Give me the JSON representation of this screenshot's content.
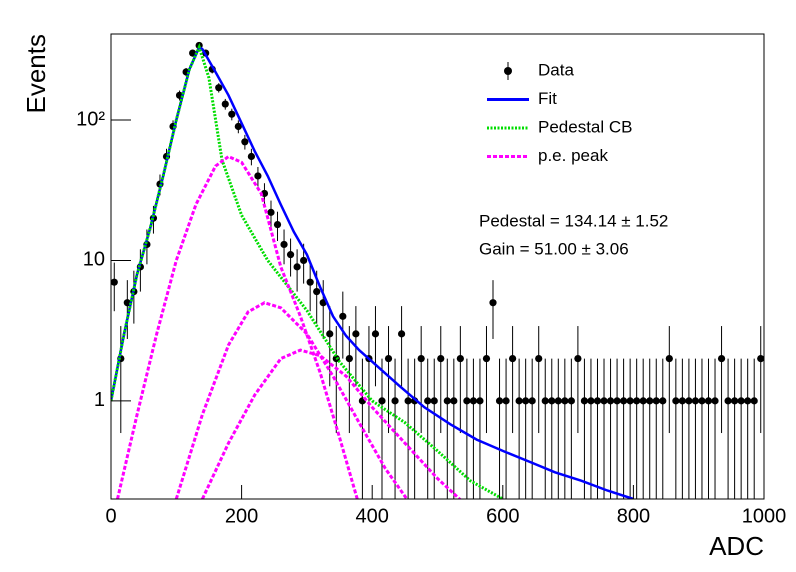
{
  "chart_data": {
    "type": "scatter",
    "x_label": "ADC",
    "y_label": "Events",
    "xlim": [
      0,
      1000
    ],
    "ylim": [
      0.2,
      410
    ],
    "log_y": true,
    "xticks": [
      0,
      200,
      400,
      600,
      800,
      1000
    ],
    "yticks": [
      1,
      10,
      {
        "value": 100,
        "label": "10²"
      }
    ],
    "legend": "top right",
    "annotations": [
      "Pedestal = 134.14 ± 1.52",
      "Gain = 51.00 ± 3.06"
    ],
    "series": [
      {
        "name": "Data",
        "color": "#000000",
        "style": "points",
        "x": [
          5,
          15,
          25,
          35,
          45,
          55,
          65,
          75,
          85,
          95,
          105,
          115,
          125,
          135,
          145,
          155,
          165,
          175,
          185,
          195,
          205,
          215,
          225,
          235,
          245,
          255,
          265,
          275,
          285,
          295,
          305,
          315,
          325,
          335,
          345,
          355,
          365,
          375,
          385,
          395,
          405,
          415,
          425,
          435,
          445,
          455,
          465,
          475,
          485,
          495,
          505,
          515,
          525,
          535,
          545,
          555,
          565,
          575,
          585,
          595,
          605,
          615,
          625,
          635,
          645,
          655,
          665,
          675,
          685,
          695,
          705,
          715,
          725,
          735,
          745,
          755,
          765,
          775,
          785,
          795,
          805,
          815,
          825,
          835,
          845,
          855,
          865,
          875,
          885,
          895,
          905,
          915,
          925,
          935,
          945,
          955,
          965,
          975,
          985,
          995
        ],
        "values": [
          7,
          2,
          5,
          6,
          9,
          13,
          20,
          35,
          55,
          90,
          150,
          220,
          300,
          340,
          300,
          230,
          170,
          130,
          110,
          90,
          70,
          55,
          40,
          30,
          22,
          18,
          13,
          11,
          9,
          10,
          7,
          6,
          5,
          3,
          2,
          4,
          2,
          3,
          1,
          2,
          3,
          1,
          2,
          1,
          3,
          1,
          1,
          2,
          1,
          1,
          2,
          1,
          1,
          2,
          1,
          1,
          1,
          2,
          5,
          1,
          1,
          2,
          1,
          1,
          1,
          2,
          1,
          1,
          1,
          1,
          1,
          2,
          1,
          1,
          1,
          1,
          1,
          1,
          1,
          1,
          1,
          1,
          1,
          1,
          1,
          2,
          1,
          1,
          1,
          1,
          1,
          1,
          1,
          2,
          1,
          1,
          1,
          1,
          1,
          2
        ],
        "errors": [
          2.65,
          1.41,
          2.24,
          2.45,
          3,
          3.61,
          4.47,
          5.92,
          7.42,
          9.49,
          12.25,
          14.83,
          17.32,
          18.44,
          17.32,
          15.17,
          13.04,
          11.4,
          10.49,
          9.49,
          8.37,
          7.42,
          6.32,
          5.48,
          4.69,
          4.24,
          3.61,
          3.32,
          3,
          3.16,
          2.65,
          2.45,
          2.24,
          1.73,
          1.41,
          2,
          1.41,
          1.73,
          1,
          1.41,
          1.73,
          1,
          1.41,
          1,
          1.73,
          1,
          1,
          1.41,
          1,
          1,
          1.41,
          1,
          1,
          1.41,
          1,
          1,
          1,
          1.41,
          2.24,
          1,
          1,
          1.41,
          1,
          1,
          1,
          1.41,
          1,
          1,
          1,
          1,
          1,
          1.41,
          1,
          1,
          1,
          1,
          1,
          1,
          1,
          1,
          1,
          1,
          1,
          1,
          1,
          1.41,
          1,
          1,
          1,
          1,
          1,
          1,
          1,
          1.41,
          1,
          1,
          1,
          1,
          1,
          1.41
        ]
      },
      {
        "name": "Fit",
        "color": "#0000ff",
        "style": "solid",
        "x": [
          0,
          20,
          40,
          60,
          80,
          100,
          120,
          135,
          140,
          160,
          180,
          200,
          220,
          240,
          260,
          280,
          300,
          320,
          340,
          360,
          380,
          400,
          440,
          480,
          520,
          560,
          600,
          640,
          680,
          720,
          760,
          800
        ],
        "values": [
          1,
          3,
          8,
          17,
          40,
          100,
          230,
          330,
          320,
          220,
          150,
          95,
          60,
          40,
          25,
          16,
          11,
          6.5,
          4,
          2.9,
          2.3,
          1.9,
          1.3,
          0.9,
          0.68,
          0.53,
          0.44,
          0.37,
          0.31,
          0.27,
          0.23,
          0.2
        ]
      },
      {
        "name": "Pedestal CB",
        "color": "#00dd00",
        "style": "dotted",
        "x": [
          0,
          20,
          40,
          60,
          80,
          100,
          120,
          135,
          150,
          170,
          200,
          240,
          300,
          350,
          400,
          450,
          500,
          550,
          600
        ],
        "values": [
          1,
          3,
          8,
          17,
          40,
          100,
          230,
          330,
          200,
          52,
          21,
          10,
          4.4,
          1.9,
          1,
          0.7,
          0.44,
          0.27,
          0.2
        ]
      },
      {
        "name": "p.e. peak",
        "color": "#ff00ff",
        "style": "dashed",
        "x": [
          10,
          40,
          70,
          100,
          130,
          160,
          180,
          200,
          230,
          260,
          290,
          320,
          350,
          380
        ],
        "values": [
          0.2,
          0.8,
          3,
          10,
          25,
          47,
          55,
          50,
          30,
          9,
          4,
          1.6,
          0.55,
          0.18
        ]
      },
      {
        "name": "p.e. peak",
        "color": "#ff00ff",
        "style": "dashed",
        "x": [
          100,
          140,
          180,
          210,
          235,
          260,
          300,
          340,
          380,
          420,
          460
        ],
        "values": [
          0.2,
          0.8,
          2.5,
          4.3,
          5,
          4.6,
          3,
          1.5,
          0.7,
          0.33,
          0.18
        ]
      },
      {
        "name": "p.e. peak",
        "color": "#ff00ff",
        "style": "dashed",
        "x": [
          140,
          180,
          220,
          260,
          290,
          320,
          360,
          400,
          450,
          500,
          550
        ],
        "values": [
          0.2,
          0.5,
          1.1,
          2,
          2.3,
          2.1,
          1.5,
          0.9,
          0.5,
          0.28,
          0.17
        ]
      }
    ]
  }
}
